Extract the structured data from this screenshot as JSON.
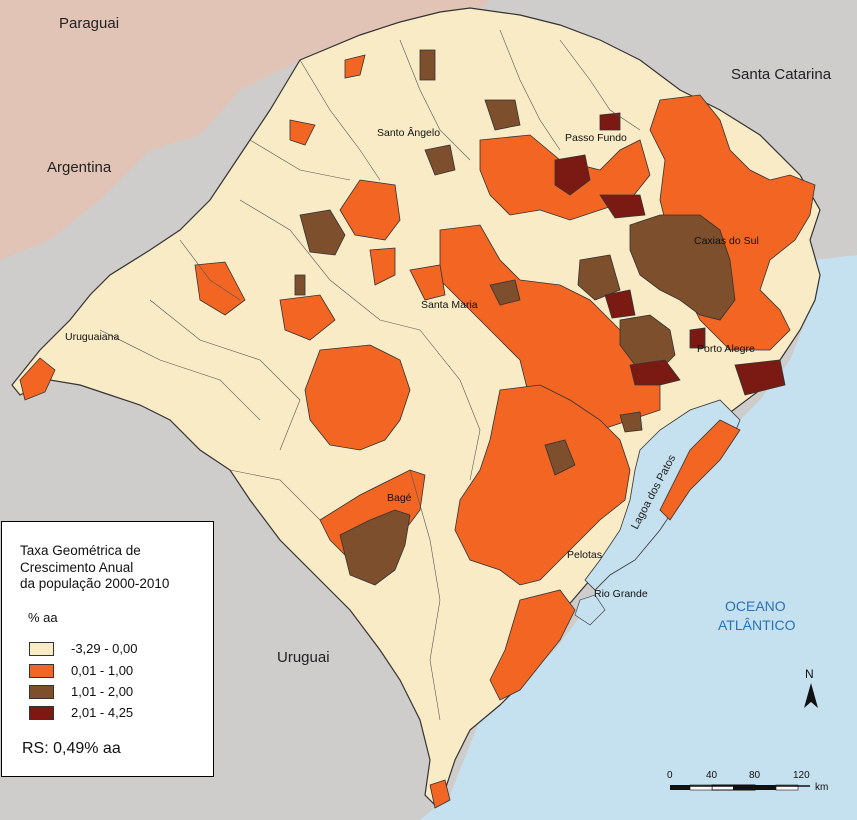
{
  "colors": {
    "ocean": "#c5e0ee",
    "neighbor_paraguay": "#e2c4b6",
    "neighbor_gray": "#cfcccc",
    "class_1": "#f9ebc6",
    "class_2": "#f26522",
    "class_3": "#7d4f2c",
    "class_4": "#7a1a12",
    "border": "#333333",
    "ocean_label": "#2a73b8"
  },
  "map": {
    "countries": [
      {
        "name": "Paraguai"
      },
      {
        "name": "Argentina"
      },
      {
        "name": "Uruguai"
      },
      {
        "name": "Santa Catarina"
      }
    ],
    "ocean_label_line1": "OCEANO",
    "ocean_label_line2": "ATLÂNTICO",
    "lagoon_label": "Lagoa dos Patos",
    "cities": [
      {
        "name": "Santo Ângelo"
      },
      {
        "name": "Passo Fundo"
      },
      {
        "name": "Caxias do Sul"
      },
      {
        "name": "Santa Maria"
      },
      {
        "name": "Uruguaiana"
      },
      {
        "name": "Porto Alegre"
      },
      {
        "name": "Bagé"
      },
      {
        "name": "Pelotas"
      },
      {
        "name": "Rio Grande"
      }
    ]
  },
  "legend": {
    "title_line1": "Taxa Geométrica de",
    "title_line2": "Crescimento Anual",
    "title_line3": "da população 2000-2010",
    "unit": "% aa",
    "classes": [
      {
        "label": "-3,29 - 0,00",
        "color_key": "class_1"
      },
      {
        "label": "0,01 - 1,00",
        "color_key": "class_2"
      },
      {
        "label": "1,01 - 2,00",
        "color_key": "class_3"
      },
      {
        "label": "2,01 - 4,25",
        "color_key": "class_4"
      }
    ],
    "summary": "RS: 0,49% aa"
  },
  "north_arrow": {
    "label": "N"
  },
  "scale_bar": {
    "ticks": [
      "0",
      "40",
      "80",
      "120"
    ],
    "unit": "km"
  }
}
